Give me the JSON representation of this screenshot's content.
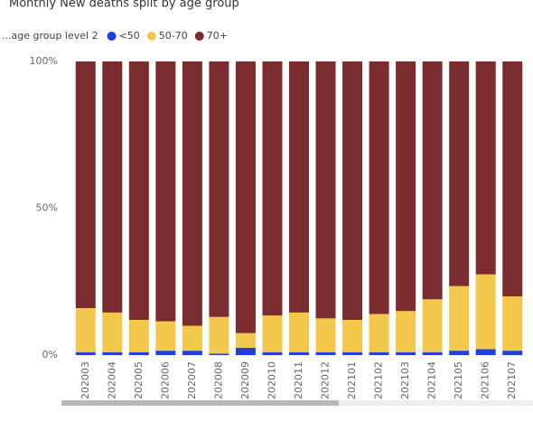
{
  "chart_data": {
    "type": "stacked_bar_100",
    "title": "Monthly New deaths split by age group",
    "legend_title": "...age group level 2",
    "categories": [
      "202003",
      "202004",
      "202005",
      "202006",
      "202007",
      "202008",
      "202009",
      "202010",
      "202011",
      "202012",
      "202101",
      "202102",
      "202103",
      "202104",
      "202105",
      "202106",
      "202107"
    ],
    "series": [
      {
        "name": "<50",
        "color": "#1f3fe0",
        "values": [
          1,
          1,
          1,
          1.5,
          1.5,
          0.5,
          2.5,
          1,
          1,
          1,
          1,
          1,
          1,
          1,
          1.5,
          2,
          1.5
        ]
      },
      {
        "name": "50-70",
        "color": "#f2c94c",
        "values": [
          15,
          13.5,
          11,
          10,
          8.5,
          12.5,
          5,
          12.5,
          13.5,
          11.5,
          11,
          13,
          14,
          18,
          22,
          25.5,
          18.5
        ]
      },
      {
        "name": "70+",
        "color": "#7b2c2e",
        "values": [
          84,
          85.5,
          88,
          88.5,
          90,
          87,
          92.5,
          86.5,
          85.5,
          87.5,
          88,
          86,
          85,
          81,
          76.5,
          72.5,
          80
        ]
      }
    ],
    "ylim": [
      0,
      100
    ],
    "yticks": [
      {
        "value": 0,
        "label": "0%"
      },
      {
        "value": 50,
        "label": "50%"
      },
      {
        "value": 100,
        "label": "100%"
      }
    ],
    "legend": "top-left"
  }
}
